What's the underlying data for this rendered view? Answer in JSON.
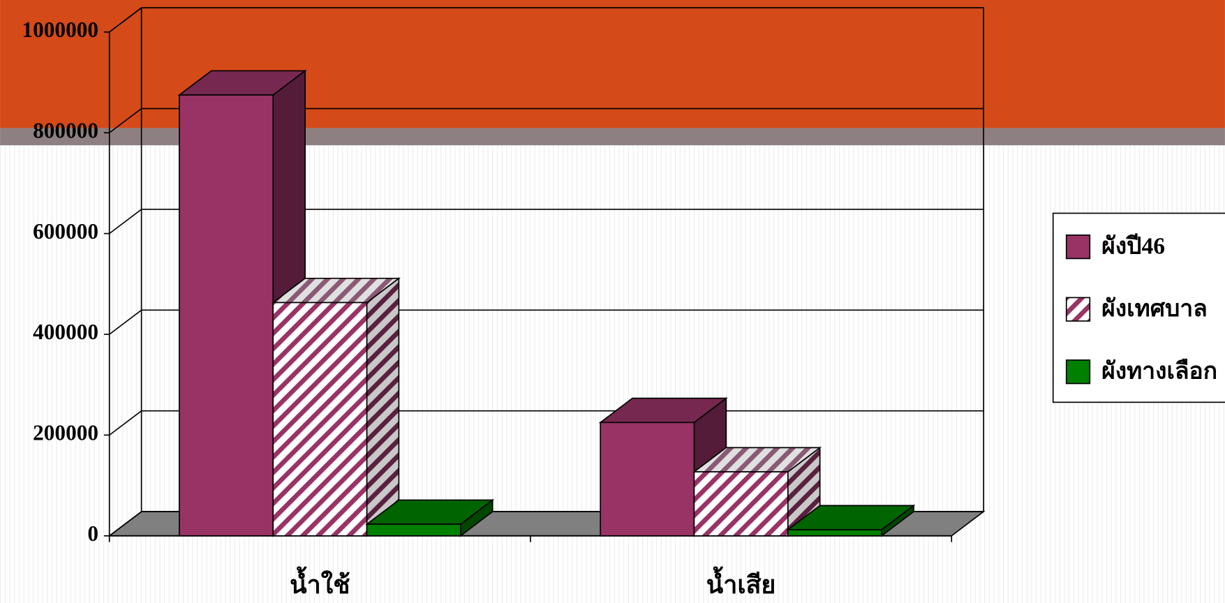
{
  "chart_data": {
    "type": "bar3d",
    "categories": [
      "น้ำใช้",
      "น้ำเสีย"
    ],
    "series": [
      {
        "name": "ผังปี46",
        "color": "#993366",
        "values": [
          875000,
          225000
        ]
      },
      {
        "name": "ผังเทศบาล",
        "color": "#993366",
        "hatch": true,
        "values": [
          463000,
          127000
        ]
      },
      {
        "name": "ผังทางเลือก",
        "color": "#008000",
        "values": [
          23000,
          12000
        ]
      }
    ],
    "ylim": [
      0,
      1000000
    ],
    "yticks": [
      0,
      200000,
      400000,
      600000,
      800000,
      1000000
    ],
    "grid": true,
    "legend": "right"
  }
}
